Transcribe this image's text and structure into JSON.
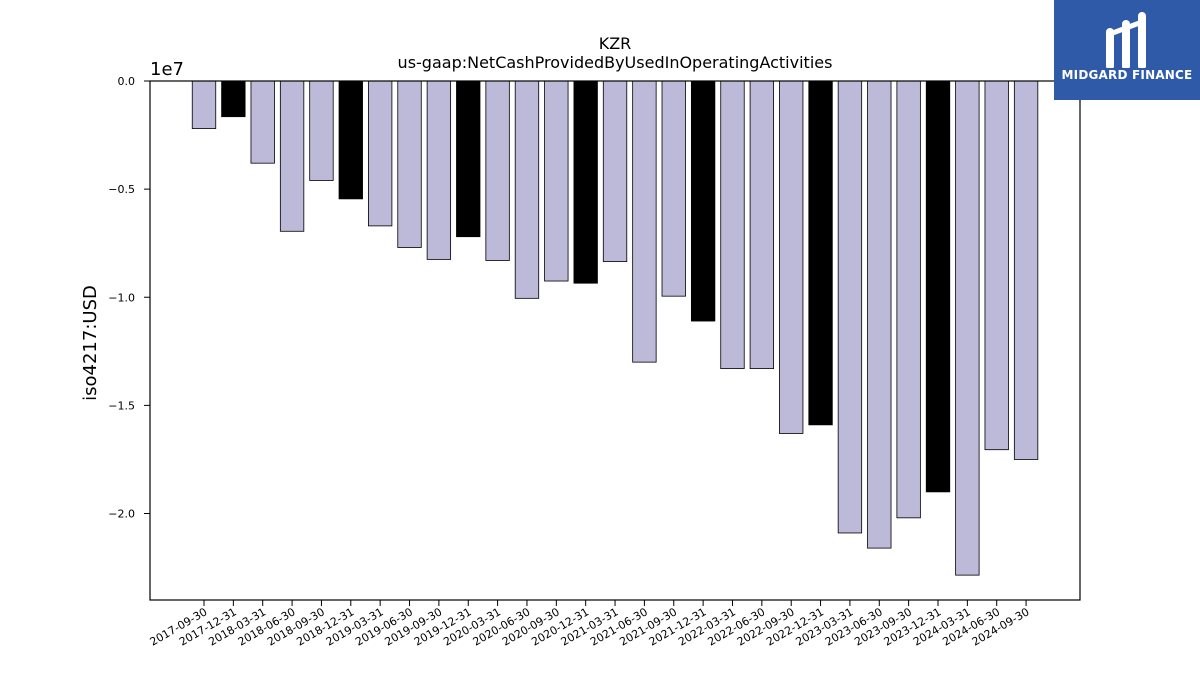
{
  "brand": {
    "name": "MIDGARD FINANCE",
    "bg_color": "#2f5aa8"
  },
  "chart_data": {
    "type": "bar",
    "title": "KZR",
    "subtitle": "us-gaap:NetCashProvidedByUsedInOperatingActivities",
    "xlabel": "",
    "ylabel": "iso4217:USD",
    "y_scale_label": "1e7",
    "ylim": [
      -2.4,
      0.0
    ],
    "y_ticks": [
      0.0,
      -0.5,
      -1.0,
      -1.5,
      -2.0
    ],
    "y_tick_labels": [
      "0.0",
      "−0.5",
      "−1.0",
      "−1.5",
      "−2.0"
    ],
    "grid": false,
    "colors": {
      "quarter": "#bcb9d9",
      "year_end": "#000000",
      "edge": "#000000"
    },
    "categories": [
      "2017-09-30",
      "2017-12-31",
      "2018-03-31",
      "2018-06-30",
      "2018-09-30",
      "2018-12-31",
      "2019-03-31",
      "2019-06-30",
      "2019-09-30",
      "2019-12-31",
      "2020-03-31",
      "2020-06-30",
      "2020-09-30",
      "2020-12-31",
      "2021-03-31",
      "2021-06-30",
      "2021-09-30",
      "2021-12-31",
      "2022-03-31",
      "2022-06-30",
      "2022-09-30",
      "2022-12-31",
      "2023-03-31",
      "2023-06-30",
      "2023-09-30",
      "2023-12-31",
      "2024-03-31",
      "2024-06-30",
      "2024-09-30"
    ],
    "values": [
      -2200000,
      -1650000,
      -3800000,
      -6950000,
      -4600000,
      -5450000,
      -6700000,
      -7700000,
      -8250000,
      -7200000,
      -8300000,
      -10050000,
      -9250000,
      -9350000,
      -8350000,
      -13000000,
      -9950000,
      -11100000,
      -13300000,
      -13300000,
      -16300000,
      -15900000,
      -20900000,
      -21600000,
      -20200000,
      -19000000,
      -22850000,
      -17050000,
      -17500000
    ],
    "year_end": [
      false,
      true,
      false,
      false,
      false,
      true,
      false,
      false,
      false,
      true,
      false,
      false,
      false,
      true,
      false,
      false,
      false,
      true,
      false,
      false,
      false,
      true,
      false,
      false,
      false,
      true,
      false,
      false,
      false
    ]
  }
}
